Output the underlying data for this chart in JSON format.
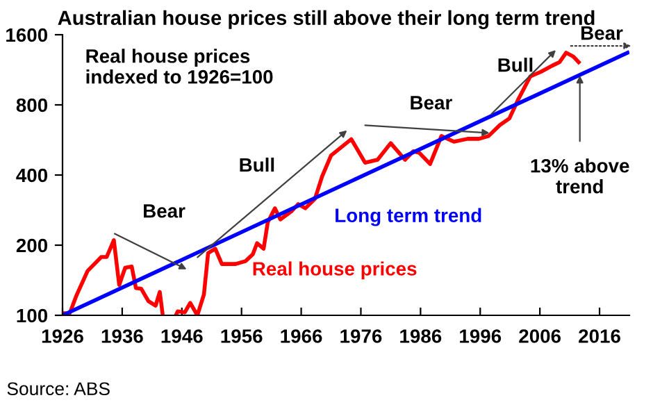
{
  "chart_data": {
    "type": "line",
    "title": "Australian house prices still above their long term trend",
    "ylabel": "Real house prices\nindexed to 1926=100",
    "log": "y",
    "grid": false,
    "legend": false,
    "marker": "none",
    "line_style": "solid",
    "xlim": [
      1926,
      2021
    ],
    "xticks": [
      1926,
      1936,
      1946,
      1956,
      1966,
      1976,
      1986,
      1996,
      2006,
      2016
    ],
    "ylim": [
      100,
      1600
    ],
    "yticks": [
      100,
      200,
      400,
      800,
      1600
    ],
    "series": [
      {
        "name": "Real house prices",
        "color": "#ff0000",
        "x": [
          1926,
          1927.2,
          1928.3,
          1930.2,
          1932.5,
          1933.4,
          1934.6,
          1935.5,
          1936.5,
          1937.6,
          1938.3,
          1939.2,
          1940.4,
          1941.6,
          1942.3,
          1942.8,
          1943.8,
          1945,
          1945.3,
          1946.5,
          1947.4,
          1948.6,
          1949.7,
          1950.4,
          1951.6,
          1952.7,
          1955,
          1956.7,
          1957.9,
          1958.6,
          1959.7,
          1960.4,
          1961.6,
          1962.5,
          1964.4,
          1965.5,
          1966.7,
          1968.3,
          1969.5,
          1971,
          1974.4,
          1976.7,
          1978.8,
          1981,
          1983.4,
          1984.8,
          1985.8,
          1987.6,
          1989.5,
          1991.6,
          1993.9,
          1995.8,
          1997.4,
          1999.3,
          2000.9,
          2002.3,
          2004.4,
          2006.2,
          2008.1,
          2009.3,
          2010.4,
          2011.6,
          2012.5
        ],
        "values": [
          102,
          102,
          121,
          155,
          178,
          178,
          210,
          135,
          160,
          162,
          131,
          130,
          115,
          110,
          126,
          100,
          null,
          100,
          104,
          103,
          113,
          100,
          123,
          185,
          193,
          166,
          166,
          171,
          183,
          204,
          193,
          251,
          288,
          258,
          280,
          300,
          288,
          316,
          394,
          485,
          570,
          452,
          465,
          548,
          465,
          506,
          498,
          446,
          588,
          556,
          572,
          572,
          588,
          656,
          700,
          837,
          1060,
          1110,
          1180,
          1220,
          1340,
          1290,
          1220
        ]
      },
      {
        "name": "Long term trend",
        "color": "#0000ff",
        "x": [
          1926,
          2020.7
        ],
        "values": [
          100,
          1340
        ]
      }
    ],
    "annotations": [
      "Bear",
      "Bull",
      "Bear",
      "Bull",
      "Bear",
      {
        "text": "13% above\ntrend",
        "x": 2012.7,
        "y": 1110
      },
      "Source: ABS"
    ]
  }
}
